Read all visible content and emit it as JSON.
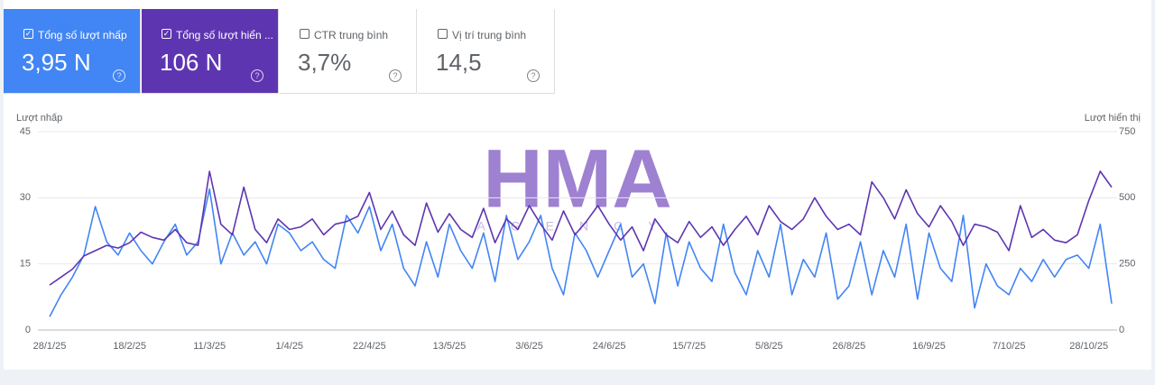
{
  "cards": [
    {
      "label": "Tổng số lượt nhấp",
      "value": "3,95 N",
      "checked": true,
      "color": "#4285f4"
    },
    {
      "label": "Tổng số lượt hiển ...",
      "value": "106 N",
      "checked": true,
      "color": "#5e35b1"
    },
    {
      "label": "CTR trung bình",
      "value": "3,7%",
      "checked": false,
      "color": "#ffffff"
    },
    {
      "label": "Vị trí trung bình",
      "value": "14,5",
      "checked": false,
      "color": "#ffffff"
    }
  ],
  "watermark": {
    "title": "HMA",
    "subtitle": "AGENCY"
  },
  "chart_data": {
    "type": "line",
    "y_label": "Lượt nhấp",
    "y2_label": "Lượt hiển thị",
    "categories": [
      "28/1/25",
      null,
      null,
      null,
      null,
      null,
      null,
      "18/2/25",
      null,
      null,
      null,
      null,
      null,
      null,
      "11/3/25",
      null,
      null,
      null,
      null,
      null,
      null,
      "1/4/25",
      null,
      null,
      null,
      null,
      null,
      null,
      "22/4/25",
      null,
      null,
      null,
      null,
      null,
      null,
      "13/5/25",
      null,
      null,
      null,
      null,
      null,
      null,
      "3/6/25",
      null,
      null,
      null,
      null,
      null,
      null,
      "24/6/25",
      null,
      null,
      null,
      null,
      null,
      null,
      "15/7/25",
      null,
      null,
      null,
      null,
      null,
      null,
      "5/8/25",
      null,
      null,
      null,
      null,
      null,
      null,
      "26/8/25",
      null,
      null,
      null,
      null,
      null,
      null,
      "16/9/25",
      null,
      null,
      null,
      null,
      null,
      null,
      "7/10/25",
      null,
      null,
      null,
      null,
      null,
      null,
      "28/10/25",
      null,
      null
    ],
    "ylim": [
      0,
      45
    ],
    "yticks": [
      0,
      15,
      30,
      45
    ],
    "y2lim": [
      0,
      750
    ],
    "y2ticks": [
      0,
      250,
      500,
      750
    ],
    "grid": true,
    "series": [
      {
        "name": "Lượt nhấp",
        "color": "#4285f4",
        "values": [
          3,
          8,
          12,
          17,
          28,
          20,
          17,
          22,
          18,
          15,
          20,
          24,
          17,
          20,
          32,
          15,
          22,
          17,
          20,
          15,
          24,
          22,
          18,
          20,
          16,
          14,
          26,
          22,
          28,
          18,
          24,
          14,
          10,
          20,
          12,
          24,
          18,
          14,
          22,
          11,
          26,
          16,
          20,
          26,
          14,
          8,
          22,
          18,
          12,
          18,
          24,
          12,
          15,
          6,
          22,
          10,
          20,
          14,
          11,
          24,
          13,
          8,
          18,
          12,
          24,
          8,
          16,
          12,
          22,
          7,
          10,
          20,
          8,
          18,
          12,
          24,
          7,
          22,
          14,
          11,
          26,
          5,
          15,
          10,
          8,
          14,
          11,
          16,
          12,
          16,
          17,
          14,
          24,
          6
        ]
      },
      {
        "name": "Lượt hiển thị",
        "color": "#5e35b1",
        "axis": "y2",
        "values": [
          170,
          200,
          230,
          280,
          300,
          320,
          310,
          330,
          370,
          350,
          340,
          380,
          330,
          320,
          600,
          400,
          360,
          540,
          380,
          330,
          420,
          380,
          390,
          420,
          360,
          400,
          410,
          430,
          520,
          380,
          450,
          360,
          320,
          480,
          370,
          440,
          380,
          350,
          460,
          330,
          420,
          380,
          470,
          400,
          340,
          450,
          360,
          410,
          470,
          400,
          340,
          390,
          300,
          420,
          360,
          330,
          410,
          350,
          390,
          320,
          380,
          430,
          360,
          470,
          410,
          380,
          420,
          500,
          430,
          380,
          400,
          360,
          560,
          500,
          420,
          530,
          440,
          390,
          470,
          410,
          320,
          400,
          390,
          370,
          300,
          470,
          350,
          380,
          340,
          330,
          360,
          490,
          600,
          540
        ]
      }
    ]
  }
}
